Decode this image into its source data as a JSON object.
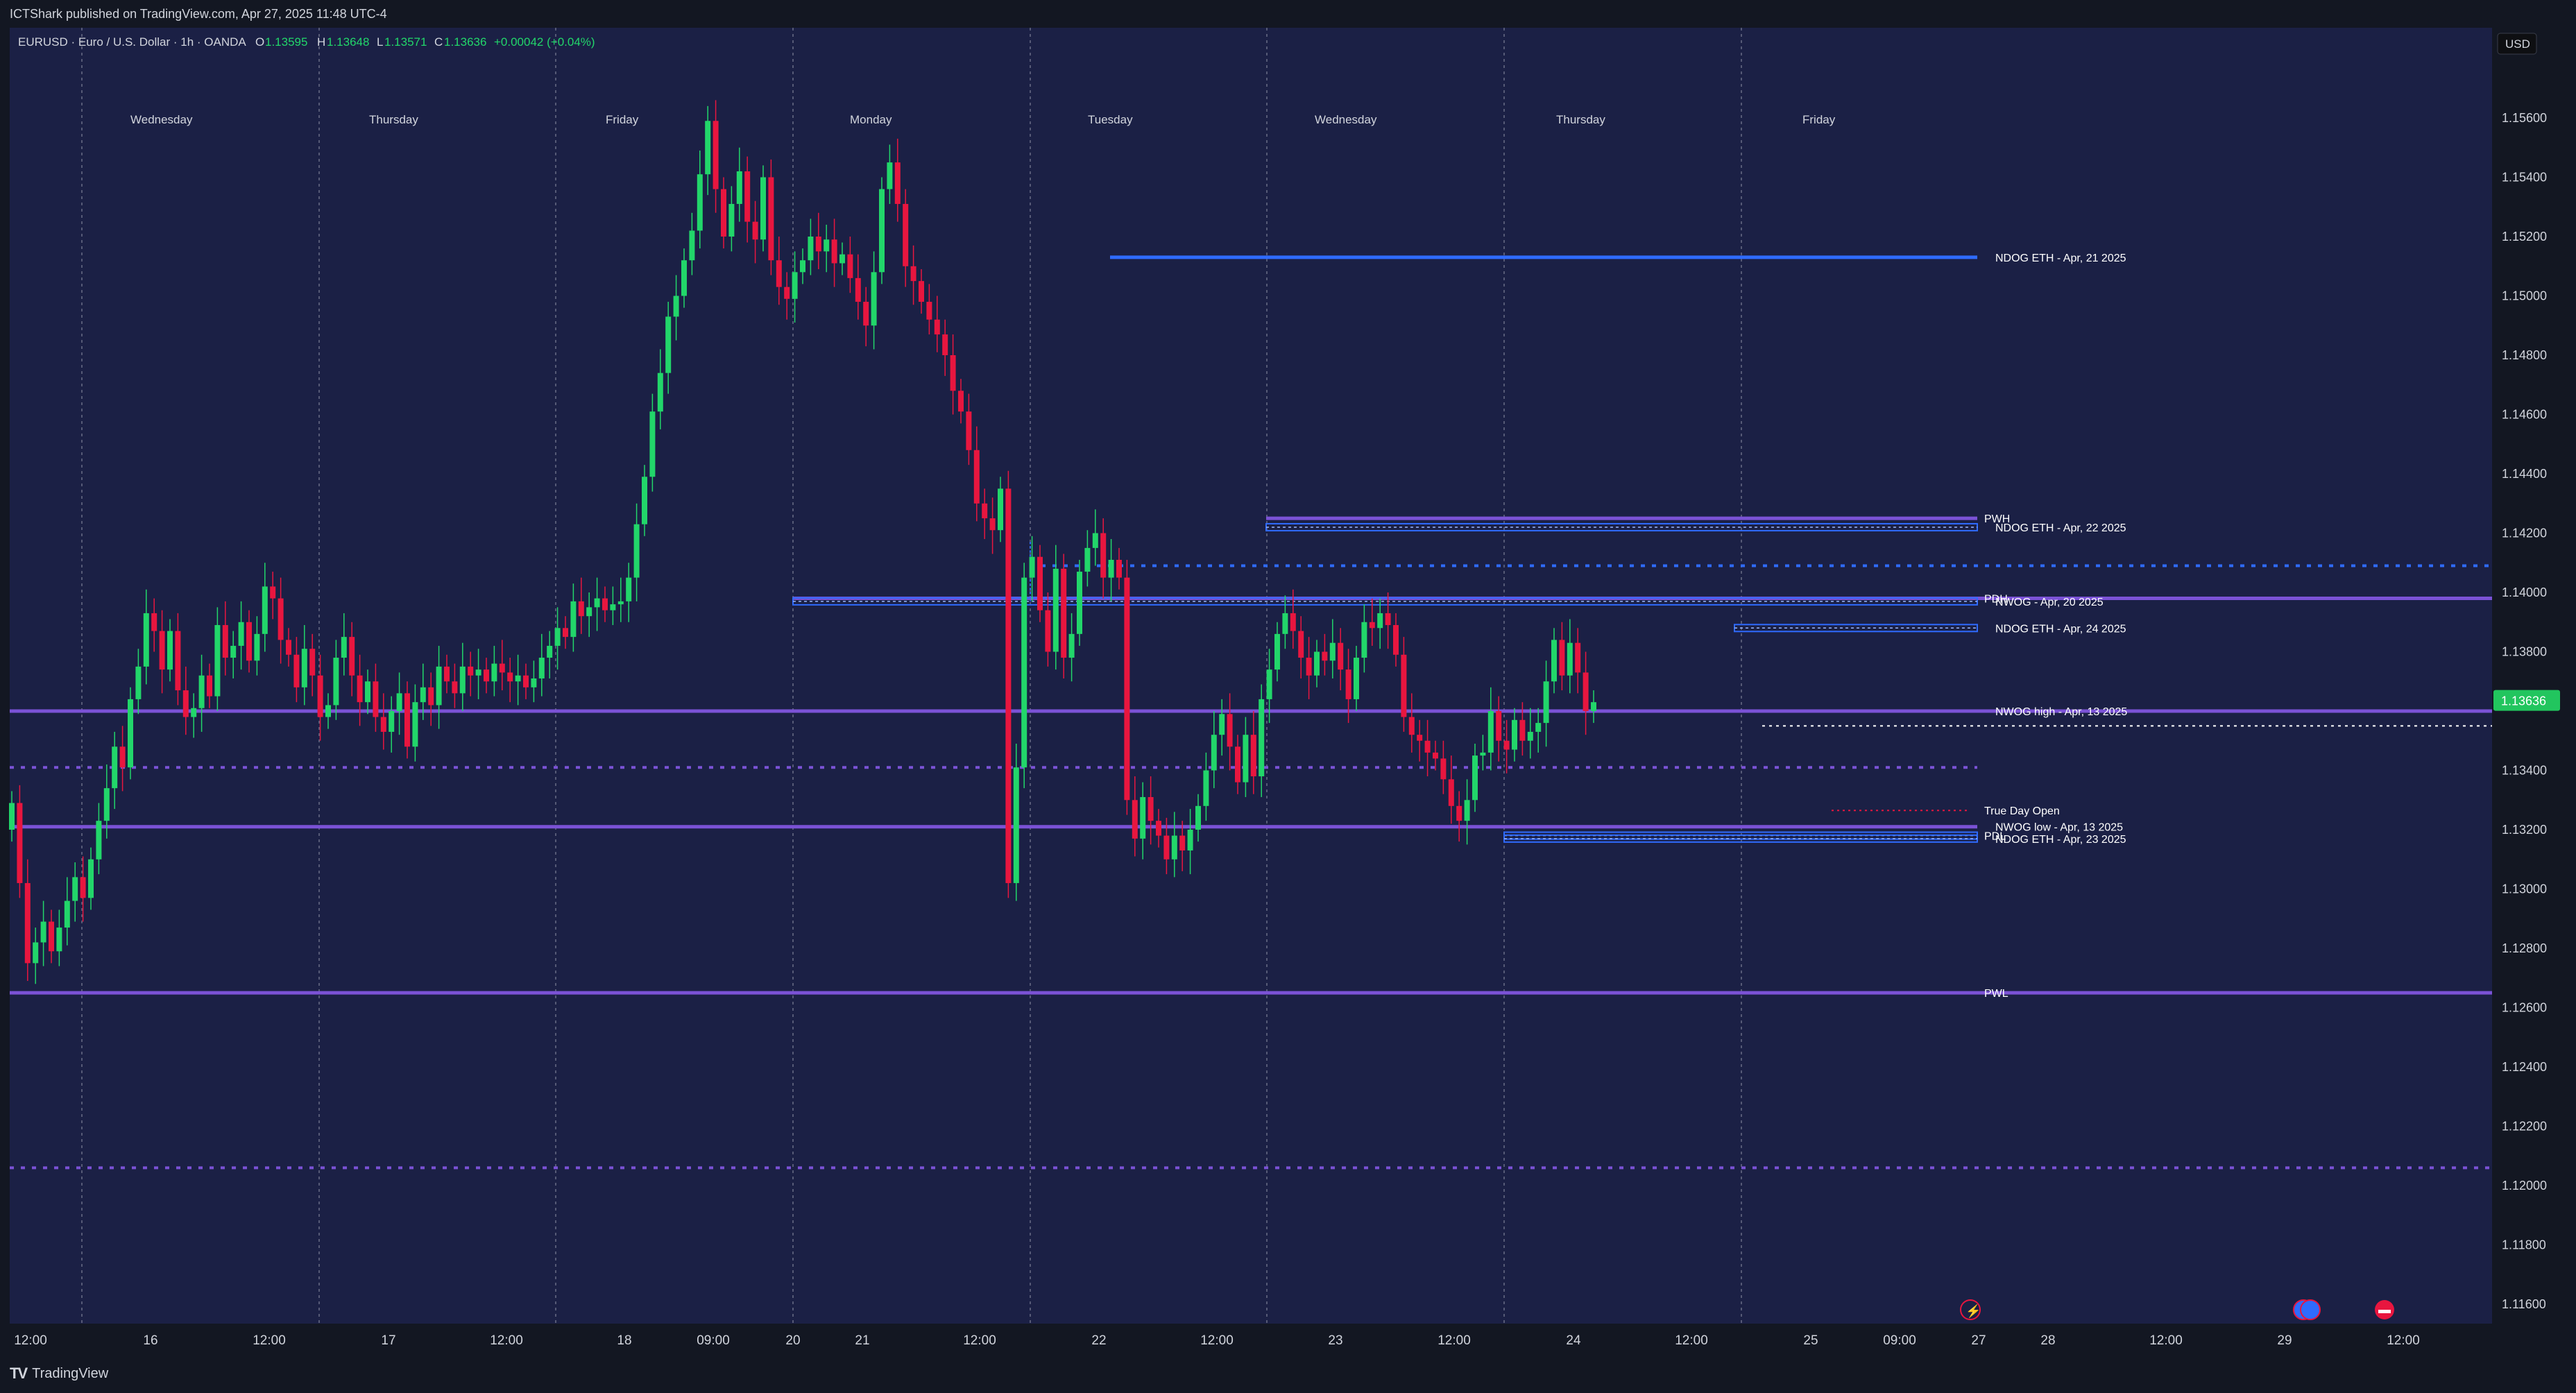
{
  "header": {
    "published": "ICTShark published on TradingView.com, Apr 27, 2025 11:48 UTC-4",
    "symbol": "EURUSD · Euro / U.S. Dollar · 1h · OANDA",
    "ohlc": {
      "o": "1.13595",
      "h": "1.13648",
      "l": "1.13571",
      "c": "1.13636",
      "change": "+0.00042 (+0.04%)"
    }
  },
  "footer": {
    "brand": "TradingView"
  },
  "colors": {
    "background": "#1b2045",
    "up": "#22d66a",
    "down": "#e8163f",
    "purple": "#7b52d6",
    "blue": "#2f6bff",
    "text": "#d1d4dc",
    "price_label": "#22c55e"
  },
  "chart_data": {
    "type": "candlestick",
    "currency": "USD",
    "current_price": "1.13636",
    "y_ticks": [
      "1.15600",
      "1.15400",
      "1.15200",
      "1.15000",
      "1.14800",
      "1.14600",
      "1.14400",
      "1.14200",
      "1.14000",
      "1.13800",
      "1.13400",
      "1.13200",
      "1.13000",
      "1.12800",
      "1.12600",
      "1.12400",
      "1.12200",
      "1.12000",
      "1.11800",
      "1.11600"
    ],
    "ylim": [
      1.1155,
      1.1585
    ],
    "x_ticks": [
      "12:00",
      "16",
      "12:00",
      "17",
      "12:00",
      "18",
      "09:00",
      "20",
      "21",
      "12:00",
      "22",
      "12:00",
      "23",
      "12:00",
      "24",
      "12:00",
      "25",
      "09:00",
      "27",
      "28",
      "12:00",
      "29",
      "12:00"
    ],
    "day_labels": [
      "Wednesday",
      "Thursday",
      "Friday",
      "Monday",
      "Tuesday",
      "Wednesday",
      "Thursday",
      "Friday"
    ],
    "levels": [
      {
        "label": "NDOG ETH - Apr, 21 2025",
        "price": 1.1513,
        "color": "blue",
        "style": "solid"
      },
      {
        "label": "PWH",
        "price": 1.1425,
        "color": "purple",
        "style": "solid"
      },
      {
        "label": "NDOG ETH - Apr, 22 2025",
        "price": 1.1422,
        "color": "blue",
        "style": "box"
      },
      {
        "label": "PDH",
        "price": 1.1398,
        "color": "purple",
        "style": "solid"
      },
      {
        "label": "NWOG - Apr, 20 2025",
        "price": 1.1397,
        "color": "blue",
        "style": "box"
      },
      {
        "label": "NDOG ETH - Apr, 24 2025",
        "price": 1.1388,
        "color": "blue",
        "style": "box"
      },
      {
        "label": "NWOG high - Apr, 13 2025",
        "price": 1.136,
        "color": "purple",
        "style": "solid"
      },
      {
        "label": "True Day Open",
        "price": 1.13265,
        "color": "red",
        "style": "dotted"
      },
      {
        "label": "NWOG low - Apr, 13 2025",
        "price": 1.1321,
        "color": "purple",
        "style": "solid"
      },
      {
        "label": "PDL",
        "price": 1.1318,
        "color": "blue",
        "style": "box"
      },
      {
        "label": "NDOG ETH - Apr, 23 2025",
        "price": 1.1317,
        "color": "blue",
        "style": "box"
      },
      {
        "label": "PWL",
        "price": 1.1265,
        "color": "purple",
        "style": "solid"
      }
    ],
    "closes": [
      1.1329,
      1.1302,
      1.1275,
      1.1282,
      1.1289,
      1.1279,
      1.1287,
      1.1296,
      1.1304,
      1.1297,
      1.131,
      1.1323,
      1.1334,
      1.1348,
      1.1341,
      1.1364,
      1.1375,
      1.1393,
      1.1387,
      1.1374,
      1.1387,
      1.1367,
      1.1358,
      1.1361,
      1.1372,
      1.1365,
      1.1389,
      1.1378,
      1.1382,
      1.139,
      1.1377,
      1.1386,
      1.1402,
      1.1398,
      1.1384,
      1.1379,
      1.1368,
      1.1381,
      1.1372,
      1.1358,
      1.1362,
      1.1378,
      1.1385,
      1.1372,
      1.1363,
      1.137,
      1.1358,
      1.1353,
      1.136,
      1.1366,
      1.1348,
      1.1363,
      1.1368,
      1.1362,
      1.1375,
      1.137,
      1.1366,
      1.1375,
      1.1372,
      1.1374,
      1.137,
      1.1376,
      1.1373,
      1.137,
      1.1372,
      1.1368,
      1.1371,
      1.1378,
      1.1382,
      1.1388,
      1.1385,
      1.1397,
      1.1392,
      1.1395,
      1.1398,
      1.1394,
      1.1396,
      1.1397,
      1.1405,
      1.1423,
      1.1439,
      1.1461,
      1.1474,
      1.1493,
      1.15,
      1.1512,
      1.1522,
      1.1541,
      1.1559,
      1.1536,
      1.152,
      1.1531,
      1.1542,
      1.1525,
      1.1519,
      1.154,
      1.1512,
      1.1503,
      1.1499,
      1.1508,
      1.1512,
      1.152,
      1.1515,
      1.1519,
      1.1511,
      1.1514,
      1.1506,
      1.1498,
      1.149,
      1.1508,
      1.1536,
      1.1545,
      1.1531,
      1.151,
      1.1505,
      1.1498,
      1.1492,
      1.1487,
      1.148,
      1.1468,
      1.1461,
      1.1448,
      1.143,
      1.1425,
      1.1421,
      1.1435,
      1.1302,
      1.1341,
      1.1405,
      1.1412,
      1.1394,
      1.138,
      1.1408,
      1.1378,
      1.1386,
      1.1407,
      1.1415,
      1.142,
      1.1405,
      1.1411,
      1.1405,
      1.133,
      1.1317,
      1.1331,
      1.1323,
      1.1318,
      1.131,
      1.1318,
      1.1313,
      1.132,
      1.1328,
      1.134,
      1.1352,
      1.1359,
      1.1348,
      1.1336,
      1.1352,
      1.1338,
      1.1364,
      1.1374,
      1.1386,
      1.1393,
      1.1387,
      1.1378,
      1.1372,
      1.138,
      1.1377,
      1.1383,
      1.1374,
      1.1364,
      1.1378,
      1.139,
      1.1388,
      1.1393,
      1.1389,
      1.1379,
      1.1358,
      1.1352,
      1.135,
      1.1346,
      1.1344,
      1.1337,
      1.1328,
      1.1323,
      1.133,
      1.1345,
      1.1346,
      1.136,
      1.135,
      1.1347,
      1.1357,
      1.135,
      1.1353,
      1.1356,
      1.137,
      1.1384,
      1.1372,
      1.1383,
      1.1373,
      1.136,
      1.1363
    ]
  }
}
